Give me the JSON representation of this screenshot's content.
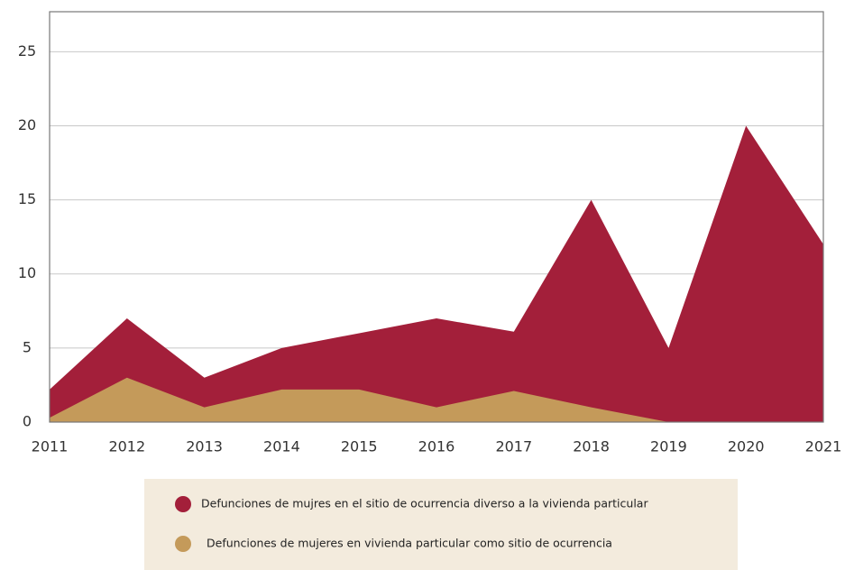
{
  "chart_data": {
    "type": "area",
    "categories": [
      "2011",
      "2012",
      "2013",
      "2014",
      "2015",
      "2016",
      "2017",
      "2018",
      "2019",
      "2020",
      "2021"
    ],
    "series": [
      {
        "name": "Defunciones de mujres en el sitio de ocurrencia diverso a la vivienda particular",
        "color": "#a31f3a",
        "values": [
          2.2,
          7,
          3,
          5,
          6,
          7,
          6.1,
          15,
          5,
          20,
          12
        ]
      },
      {
        "name": "Defunciones de mujeres en vivienda particular como sitio de ocurrencia",
        "color": "#c49a5a",
        "values": [
          0.3,
          3,
          1,
          2.2,
          2.2,
          1,
          2.1,
          1,
          0,
          0,
          0
        ]
      }
    ],
    "ylim": [
      0,
      27.7
    ],
    "yticks": [
      0,
      5,
      10,
      15,
      20,
      25
    ],
    "grid": true,
    "legend": "bottom"
  }
}
